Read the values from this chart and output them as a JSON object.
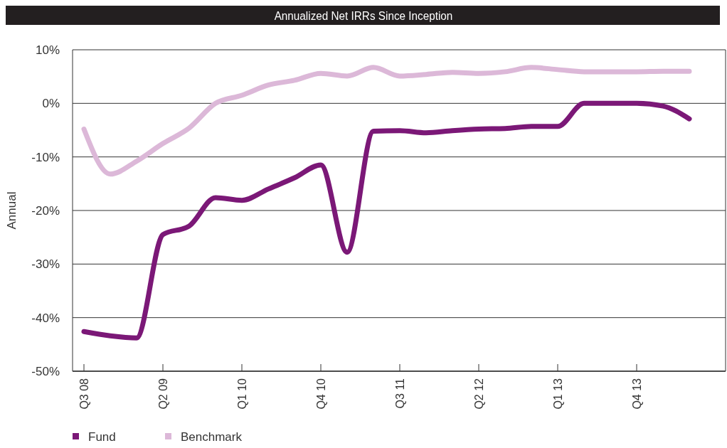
{
  "chart_data": {
    "type": "line",
    "title": "Annualized Net IRRs Since Inception",
    "ylabel": "Annual",
    "categories": [
      "Q3 08",
      null,
      null,
      "Q2 09",
      null,
      null,
      "Q1 10",
      null,
      null,
      "Q4 10",
      null,
      null,
      "Q3 11",
      null,
      null,
      "Q2 12",
      null,
      null,
      "Q1 13",
      null,
      null,
      "Q4 13",
      null,
      null
    ],
    "series": [
      {
        "name": "Fund",
        "color": "#7b1877",
        "values": [
          -42.6,
          -43.4,
          -43.8,
          -24.5,
          -22.9,
          -17.6,
          -18.1,
          -16.0,
          -13.9,
          -11.5,
          -27.8,
          -5.2,
          -5.1,
          -5.5,
          -5.1,
          -4.8,
          -4.7,
          -4.3,
          -4.3,
          0,
          0,
          0,
          -0.5,
          -2.9
        ]
      },
      {
        "name": "Benchmark",
        "color": "#dcb8d8",
        "values": [
          -4.8,
          -13.2,
          -10.8,
          -7.5,
          -4.6,
          0,
          1.5,
          3.4,
          4.3,
          5.6,
          5.1,
          6.7,
          5.1,
          5.4,
          5.8,
          5.6,
          5.9,
          6.7,
          6.3,
          5.9,
          5.9,
          5.9,
          6.0,
          6.0
        ]
      }
    ],
    "ylim": [
      -50,
      10
    ],
    "yticks": [
      {
        "value": -50,
        "label": "-50%"
      },
      {
        "value": -40,
        "label": "-40%"
      },
      {
        "value": -30,
        "label": "-30%"
      },
      {
        "value": -20,
        "label": "-20%"
      },
      {
        "value": -10,
        "label": "-10%"
      },
      {
        "value": 0,
        "label": "0%"
      },
      {
        "value": 10,
        "label": "10%"
      }
    ],
    "grid": "y",
    "legend": "bottom left",
    "marker": "none",
    "line_style": "solid"
  }
}
